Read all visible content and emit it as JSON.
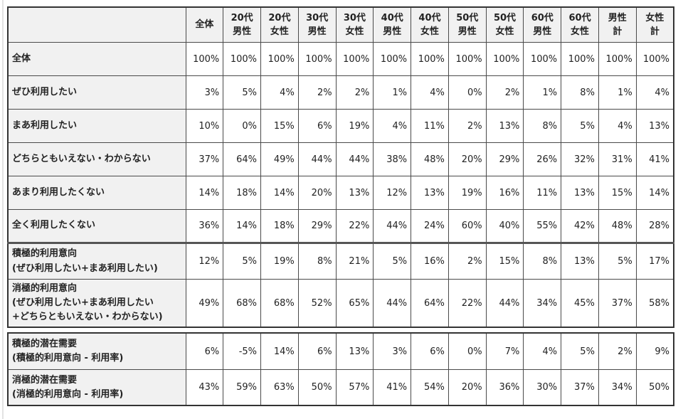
{
  "page": {
    "background": "#ffffff",
    "label_bg": "#f1f1f1",
    "grid_color": "#4a4a4a",
    "outer_border_color": "#333333",
    "thick_separator_color": "#555555",
    "text_color": "#222222"
  },
  "chart_data": {
    "type": "table",
    "unit": "percent",
    "corner_label": "",
    "columns": [
      "全体",
      "20代\n男性",
      "20代\n女性",
      "30代\n男性",
      "30代\n女性",
      "40代\n男性",
      "40代\n女性",
      "50代\n男性",
      "50代\n女性",
      "60代\n男性",
      "60代\n女性",
      "男性\n計",
      "女性\n計"
    ],
    "sections": [
      {
        "name": "usage-intention",
        "table_block": 1,
        "rows": [
          {
            "label": "全体",
            "values": [
              100,
              100,
              100,
              100,
              100,
              100,
              100,
              100,
              100,
              100,
              100,
              100,
              100
            ]
          },
          {
            "label": "ぜひ利用したい",
            "values": [
              3,
              5,
              4,
              2,
              2,
              1,
              4,
              0,
              2,
              1,
              8,
              1,
              4
            ]
          },
          {
            "label": "まあ利用したい",
            "values": [
              10,
              0,
              15,
              6,
              19,
              4,
              11,
              2,
              13,
              8,
              5,
              4,
              13
            ]
          },
          {
            "label": "どちらともいえない・わからない",
            "values": [
              37,
              64,
              49,
              44,
              44,
              38,
              48,
              20,
              29,
              26,
              32,
              31,
              41
            ]
          },
          {
            "label": "あまり利用したくない",
            "values": [
              14,
              18,
              14,
              20,
              13,
              12,
              13,
              19,
              16,
              11,
              13,
              15,
              14
            ]
          },
          {
            "label": "全く利用したくない",
            "values": [
              36,
              14,
              18,
              29,
              22,
              44,
              24,
              60,
              40,
              55,
              42,
              48,
              28
            ]
          }
        ]
      },
      {
        "name": "intention-summary",
        "table_block": 1,
        "rows": [
          {
            "label": "積極的利用意向\n (ぜひ利用したい+まあ利用したい)",
            "values": [
              12,
              5,
              19,
              8,
              21,
              5,
              16,
              2,
              15,
              8,
              13,
              5,
              17
            ]
          },
          {
            "label": "消極的利用意向\n (ぜひ利用したい+まあ利用したい\n +どちらともいえない・わからない)",
            "values": [
              49,
              68,
              68,
              52,
              65,
              44,
              64,
              22,
              44,
              34,
              45,
              37,
              58
            ]
          }
        ]
      },
      {
        "name": "latent-demand",
        "table_block": 2,
        "rows": [
          {
            "label": "積極的潜在需要\n (積極的利用意向 - 利用率)",
            "values": [
              6,
              -5,
              14,
              6,
              13,
              3,
              6,
              0,
              7,
              4,
              5,
              2,
              9
            ]
          },
          {
            "label": "消極的潜在需要\n (消極的利用意向 - 利用率)",
            "values": [
              43,
              59,
              63,
              50,
              57,
              41,
              54,
              20,
              36,
              30,
              37,
              34,
              50
            ]
          }
        ]
      }
    ]
  }
}
